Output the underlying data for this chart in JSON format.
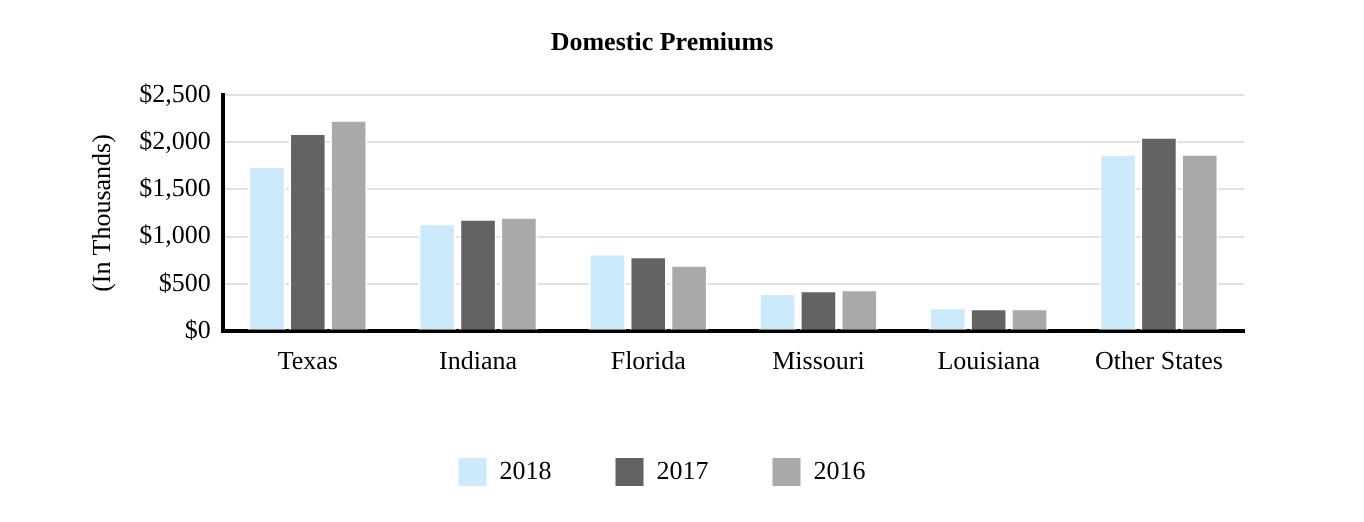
{
  "chart_data": {
    "type": "bar",
    "title": "Domestic Premiums",
    "ylabel": "(In Thousands)",
    "categories": [
      "Texas",
      "Indiana",
      "Florida",
      "Missouri",
      "Louisiana",
      "Other States"
    ],
    "series": [
      {
        "name": "2018",
        "color": "#cdeafc",
        "values": [
          1750,
          1140,
          820,
          400,
          250,
          1880
        ]
      },
      {
        "name": "2017",
        "color": "#636363",
        "values": [
          2100,
          1190,
          790,
          430,
          240,
          2060
        ]
      },
      {
        "name": "2016",
        "color": "#a9a9a9",
        "values": [
          2240,
          1210,
          700,
          440,
          240,
          1880
        ]
      }
    ],
    "ylim": [
      0,
      2500
    ],
    "yticks": [
      {
        "value": 0,
        "label": "$0"
      },
      {
        "value": 500,
        "label": "$500"
      },
      {
        "value": 1000,
        "label": "$1,000"
      },
      {
        "value": 1500,
        "label": "$1,500"
      },
      {
        "value": 2000,
        "label": "$2,000"
      },
      {
        "value": 2500,
        "label": "$2,500"
      }
    ],
    "grid": "y",
    "legend": "bottom"
  }
}
